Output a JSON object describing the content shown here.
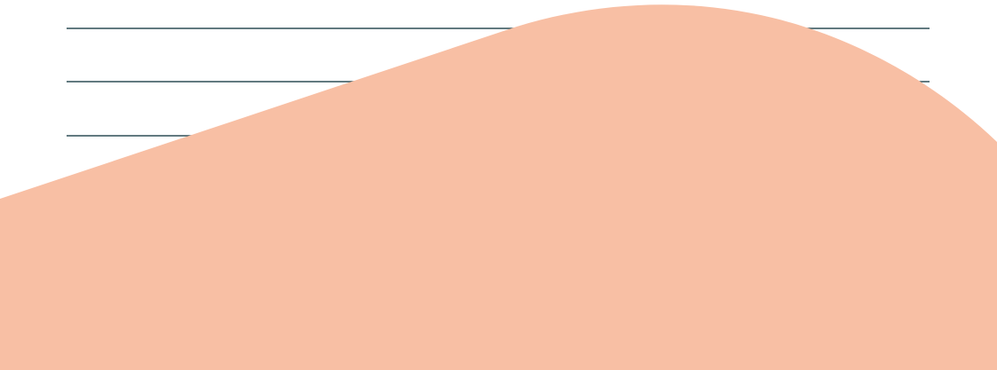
{
  "colors": {
    "background": "#ffffff",
    "rule_line": "#2f4f57",
    "wave_shape": "#f8bfa4"
  },
  "decor": {
    "rule_line_count": 3,
    "shape": "wave"
  }
}
